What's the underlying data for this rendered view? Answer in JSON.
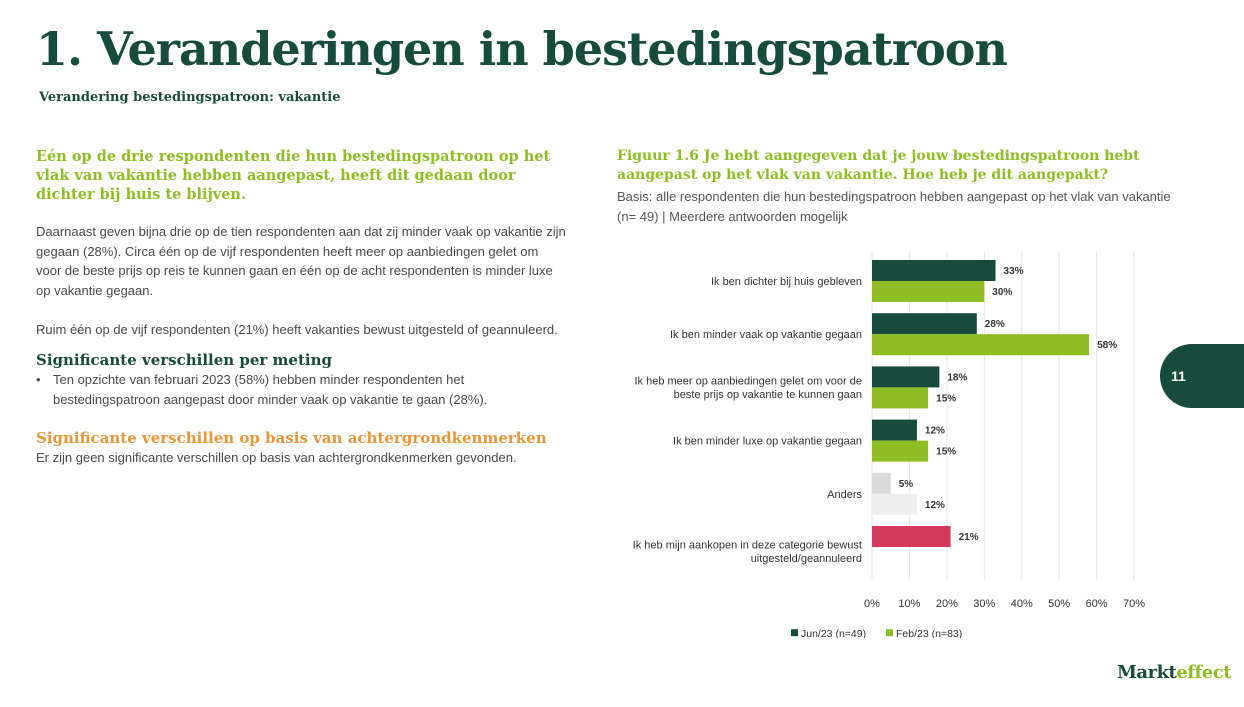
{
  "header": {
    "title": "1. Veranderingen in bestedingspatroon",
    "subtitle": "Verandering bestedingspatroon: vakantie"
  },
  "left": {
    "highlight": "Eén op de drie respondenten die hun bestedingspatroon op het vlak van vakantie hebben aangepast, heeft dit gedaan door dichter bij huis te blijven.",
    "paragraph1": "Daarnaast geven bijna drie op de tien respondenten aan dat zij minder vaak op vakantie zijn gegaan (28%). Circa één op de vijf respondenten heeft meer op aanbiedingen gelet om voor de beste prijs op reis te kunnen gaan en één op de acht respondenten is minder luxe op vakantie gegaan.",
    "paragraph2": "Ruim één op de vijf respondenten (21%) heeft vakanties bewust uitgesteld of geannuleerd.",
    "section1_heading": "Significante verschillen per meting",
    "section1_bullet": "Ten opzichte van februari 2023 (58%) hebben minder respondenten het bestedingspatroon aangepast door minder vaak op vakantie te gaan (28%).",
    "section2_heading": "Significante verschillen op basis van achtergrondkenmerken",
    "section2_text": "Er zijn geen significante verschillen op basis van achtergrondkenmerken gevonden."
  },
  "figure": {
    "title": "Figuur 1.6 Je hebt aangegeven dat je jouw bestedingspatroon hebt aangepast op het vlak van vakantie. Hoe heb je dit aangepakt?",
    "basis": "Basis: alle respondenten die hun bestedingspatroon hebben aangepast op het vlak van vakantie (n= 49) | Meerdere antwoorden mogelijk"
  },
  "chart_data": {
    "type": "bar",
    "orientation": "horizontal",
    "categories": [
      [
        "Ik ben dichter bij huis gebleven"
      ],
      [
        "Ik ben minder vaak op vakantie gegaan"
      ],
      [
        "Ik heb meer op aanbiedingen gelet om voor de",
        "beste prijs op vakantie te kunnen gaan"
      ],
      [
        "Ik ben minder luxe op vakantie gegaan"
      ],
      [
        "Anders"
      ],
      [
        "Ik heb mijn aankopen in deze categorie bewust",
        "uitgesteld/geannuleerd"
      ]
    ],
    "series": [
      {
        "name": "Jun/23 (n=49)",
        "color": "#174b3c",
        "values": [
          33,
          28,
          18,
          12,
          5,
          21
        ]
      },
      {
        "name": "Feb/23 (n=83)",
        "color": "#8fbd24",
        "values": [
          30,
          58,
          15,
          15,
          12,
          null
        ]
      }
    ],
    "special_colors": {
      "Anders": [
        "#dadada",
        "#eeeeee"
      ],
      "uitgesteld": [
        "#d2395c"
      ]
    },
    "xlim": [
      0,
      70
    ],
    "xticks": [
      0,
      10,
      20,
      30,
      40,
      50,
      60,
      70
    ],
    "tick_suffix": "%",
    "value_suffix": "%",
    "grid": true,
    "legend_position": "bottom"
  },
  "page": {
    "number": "11"
  },
  "logo": {
    "part1": "Markt",
    "part2": "effect"
  }
}
